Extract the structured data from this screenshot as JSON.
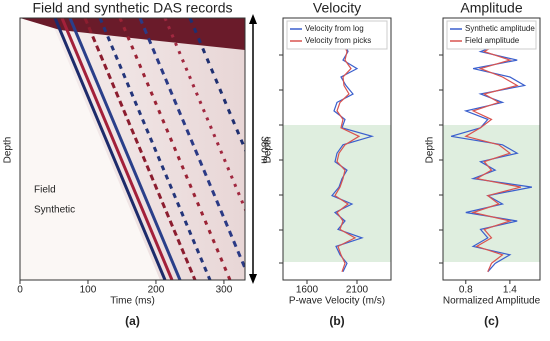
{
  "chart_data": [
    {
      "type": "image",
      "title": "Field and synthetic DAS records",
      "xlabel": "Time (ms)",
      "ylabel": "Depth",
      "xlim": [
        0,
        331
      ],
      "xticks": [
        0,
        100,
        200,
        300
      ],
      "annotations": [
        "Field",
        "Synthetic",
        "380 m"
      ],
      "panel_label": "(a)"
    },
    {
      "type": "line",
      "title": "Velocity",
      "xlabel": "P-wave Velocity (m/s)",
      "ylabel": "Depth",
      "xlim": [
        1360,
        2440
      ],
      "xticks": [
        1600,
        2100
      ],
      "panel_label": "(b)",
      "series": [
        {
          "name": "Velocity from log",
          "color": "#3a5fcd",
          "values": [
            1950,
            1930,
            1980,
            2010,
            1960,
            2100,
            1940,
            1990,
            2060,
            1900,
            1870,
            1980,
            1950,
            2250,
            1960,
            1900,
            1880,
            2000,
            1950,
            1920,
            1850,
            2050,
            1880,
            1980,
            1910,
            2150,
            1890,
            1930,
            2000,
            1960
          ]
        },
        {
          "name": "Velocity from picks",
          "color": "#d9534f",
          "values": [
            1800,
            1900,
            1960,
            2000,
            1980,
            2040,
            1960,
            1970,
            2020,
            1930,
            1900,
            1960,
            1940,
            2120,
            1980,
            1920,
            1900,
            1980,
            1960,
            1930,
            1880,
            2010,
            1900,
            1960,
            1930,
            2080,
            1910,
            1940,
            1980,
            1950
          ]
        }
      ]
    },
    {
      "type": "line",
      "title": "Amplitude",
      "xlabel": "Normalized Amplitude",
      "ylabel": "Depth",
      "xlim": [
        0.49,
        1.81
      ],
      "xticks": [
        0.8,
        1.4
      ],
      "panel_label": "(c)",
      "series": [
        {
          "name": "Synthetic amplitude",
          "color": "#3a5fcd",
          "values": [
            1.2,
            1.1,
            1.3,
            1.0,
            1.5,
            0.9,
            1.4,
            1.6,
            1.0,
            1.3,
            0.8,
            1.1,
            1.0,
            0.6,
            1.3,
            1.5,
            1.0,
            1.2,
            0.9,
            1.7,
            1.1,
            1.3,
            0.8,
            1.5,
            1.0,
            1.1,
            0.9,
            1.4,
            1.2,
            1.1
          ]
        },
        {
          "name": "Field amplitude",
          "color": "#d9534f",
          "values": [
            1.1,
            1.2,
            1.25,
            1.05,
            1.4,
            1.0,
            1.3,
            1.5,
            1.05,
            1.25,
            0.9,
            1.15,
            1.0,
            0.8,
            1.25,
            1.4,
            1.05,
            1.15,
            0.95,
            1.55,
            1.1,
            1.25,
            0.9,
            1.4,
            1.05,
            1.15,
            0.95,
            1.3,
            1.15,
            1.1
          ]
        }
      ]
    }
  ]
}
